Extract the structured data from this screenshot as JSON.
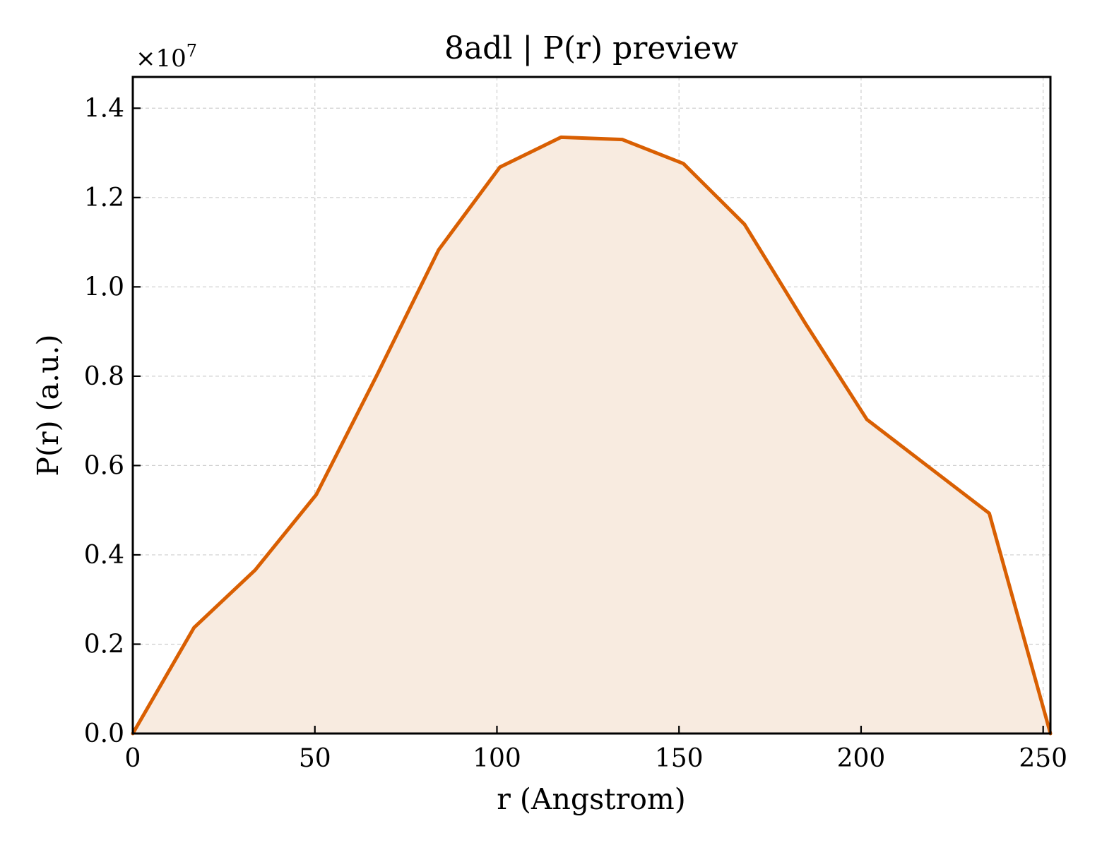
{
  "chart_data": {
    "type": "area",
    "title": "8adl | P(r) preview",
    "xlabel": "r (Angstrom)",
    "ylabel": "P(r) (a.u.)",
    "y_offset_label": "×10",
    "y_offset_exponent": "7",
    "xlim": [
      0,
      252
    ],
    "ylim": [
      0,
      1.47
    ],
    "x_ticks": [
      0,
      50,
      100,
      150,
      200,
      250
    ],
    "x_tick_labels": [
      "0",
      "50",
      "100",
      "150",
      "200",
      "250"
    ],
    "y_ticks": [
      0.0,
      0.2,
      0.4,
      0.6,
      0.8,
      1.0,
      1.2,
      1.4
    ],
    "y_tick_labels": [
      "0.0",
      "0.2",
      "0.4",
      "0.6",
      "0.8",
      "1.0",
      "1.2",
      "1.4"
    ],
    "grid": true,
    "line_color": "#d95f02",
    "fill_color": "#f8ebe0",
    "series": [
      {
        "x": [
          0,
          16.8,
          33.6,
          50.4,
          67.2,
          84.0,
          100.8,
          117.6,
          134.4,
          151.2,
          168.0,
          184.8,
          201.6,
          218.4,
          235.2,
          252.0
        ],
        "y": [
          0.0,
          0.237,
          0.366,
          0.535,
          0.805,
          1.083,
          1.268,
          1.335,
          1.33,
          1.276,
          1.14,
          0.917,
          0.703,
          0.598,
          0.493,
          0.0
        ]
      }
    ]
  }
}
